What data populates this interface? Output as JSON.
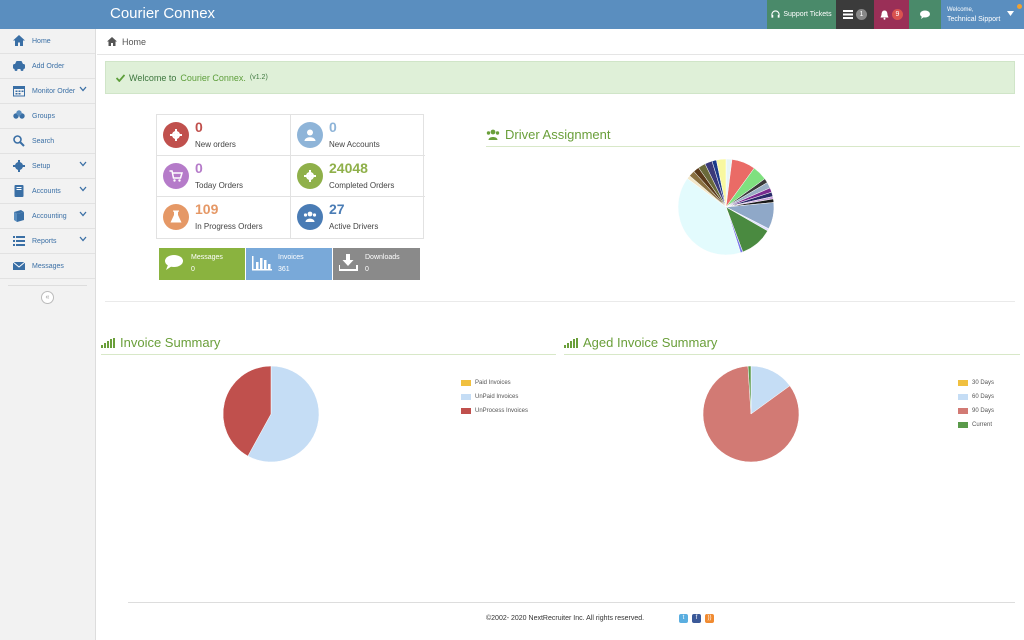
{
  "app": {
    "title": "Courier Connex"
  },
  "topbar": {
    "support_label": "Support Tickets",
    "tasks_count": "1",
    "notifications_count": "9",
    "welcome": "Welcome,",
    "username": "Technical Sipport"
  },
  "sidebar": {
    "items": [
      {
        "label": "Home",
        "icon": "home-icon"
      },
      {
        "label": "Add Order",
        "icon": "car-icon"
      },
      {
        "label": "Monitor Order",
        "icon": "calendar-icon"
      },
      {
        "label": "Groups",
        "icon": "groups-icon"
      },
      {
        "label": "Search",
        "icon": "search-icon"
      },
      {
        "label": "Setup",
        "icon": "gear-icon"
      },
      {
        "label": "Accounts",
        "icon": "book-icon"
      },
      {
        "label": "Accounting",
        "icon": "ledger-icon"
      },
      {
        "label": "Reports",
        "icon": "list-icon"
      },
      {
        "label": "Messages",
        "icon": "envelope-icon"
      }
    ],
    "collapse_glyph": "«"
  },
  "breadcrumb": {
    "home": "Home"
  },
  "alert": {
    "prefix": "Welcome to",
    "brand": "Courier Connex.",
    "version": "(v1.2)"
  },
  "stats": [
    {
      "value": "0",
      "label": "New orders",
      "color": "#c0504d"
    },
    {
      "value": "0",
      "label": "New Accounts",
      "color": "#8eb4d8"
    },
    {
      "value": "0",
      "label": "Today Orders",
      "color": "#b57bc9"
    },
    {
      "value": "24048",
      "label": "Completed Orders",
      "color": "#8fb04a"
    },
    {
      "value": "109",
      "label": "In Progress Orders",
      "color": "#e59866"
    },
    {
      "value": "27",
      "label": "Active Drivers",
      "color": "#4a7cb5"
    }
  ],
  "tiles": [
    {
      "label": "Messages",
      "value": "0",
      "color": "#8ab33f",
      "icon": "chat-icon"
    },
    {
      "label": "Invoices",
      "value": "361",
      "color": "#79a9d9",
      "icon": "bar-chart-icon"
    },
    {
      "label": "Downloads",
      "value": "0",
      "color": "#8a8a8a",
      "icon": "download-icon"
    }
  ],
  "sections": {
    "driver": "Driver Assignment",
    "invoice": "Invoice Summary",
    "aged": "Aged Invoice Summary"
  },
  "chart_data": [
    {
      "type": "pie",
      "title": "Driver Assignment",
      "values": [
        2,
        8,
        5,
        1.5,
        2,
        1.5,
        1.5,
        0.8,
        1.2,
        9,
        0.8,
        11,
        0.8,
        40,
        1.2,
        2,
        2,
        2.5,
        2.5,
        1.5,
        3.2
      ],
      "colors": [
        "#e6f5f8",
        "#ea6b66",
        "#7fe07f",
        "#3a3a3a",
        "#9bb0c6",
        "#7a2a90",
        "#2a2a6a",
        "#c9a0dc",
        "#1a1a1a",
        "#8fa8c8",
        "#e0e0ff",
        "#4a8a40",
        "#7a7aea",
        "#e3fbfd",
        "#f2e6c8",
        "#8a7040",
        "#5a3a1a",
        "#6a6a3a",
        "#3a3a7a",
        "#1a3a8a",
        "#f8f8a0"
      ]
    },
    {
      "type": "pie",
      "title": "Invoice Summary",
      "categories": [
        "Paid Invoices",
        "UnPaid Invoices",
        "UnProcess Invoices"
      ],
      "values": [
        0,
        58,
        42
      ],
      "colors": [
        "#f0c040",
        "#c5ddf5",
        "#c0504d"
      ]
    },
    {
      "type": "pie",
      "title": "Aged Invoice Summary",
      "categories": [
        "30 Days",
        "60 Days",
        "90 Days",
        "Current"
      ],
      "values": [
        0,
        15,
        84,
        1
      ],
      "colors": [
        "#f0c040",
        "#c5ddf5",
        "#d27a74",
        "#5a9a4a"
      ]
    }
  ],
  "footer": {
    "copyright": "©2002- 2020 NextRecruiter Inc. All rights reserved."
  },
  "social": [
    "twitter-icon",
    "facebook-icon",
    "rss-icon"
  ]
}
